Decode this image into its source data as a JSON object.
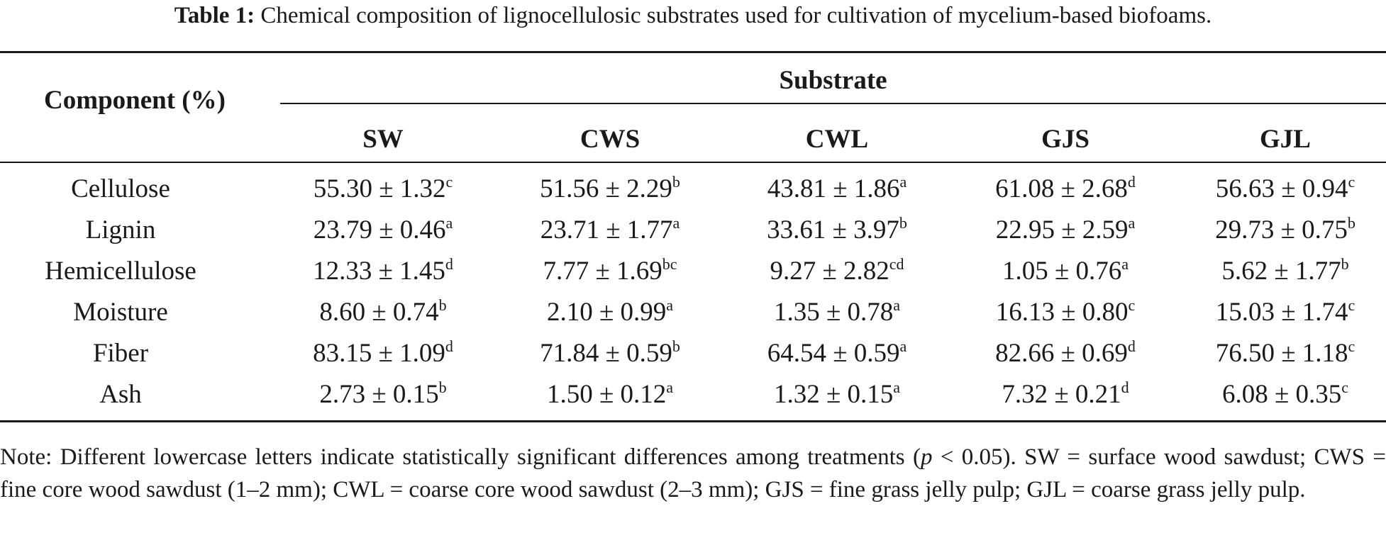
{
  "caption": {
    "label": "Table 1:",
    "text": "Chemical composition of lignocellulosic substrates used for cultivation of mycelium-based biofoams."
  },
  "table": {
    "row_header": "Component (%)",
    "group_header": "Substrate",
    "columns": [
      "SW",
      "CWS",
      "CWL",
      "GJS",
      "GJL"
    ],
    "rows": [
      {
        "label": "Cellulose",
        "cells": [
          {
            "value": "55.30 ± 1.32",
            "sig": "c"
          },
          {
            "value": "51.56 ± 2.29",
            "sig": "b"
          },
          {
            "value": "43.81 ± 1.86",
            "sig": "a"
          },
          {
            "value": "61.08 ± 2.68",
            "sig": "d"
          },
          {
            "value": "56.63 ± 0.94",
            "sig": "c"
          }
        ]
      },
      {
        "label": "Lignin",
        "cells": [
          {
            "value": "23.79 ± 0.46",
            "sig": "a"
          },
          {
            "value": "23.71 ± 1.77",
            "sig": "a"
          },
          {
            "value": "33.61 ± 3.97",
            "sig": "b"
          },
          {
            "value": "22.95 ± 2.59",
            "sig": "a"
          },
          {
            "value": "29.73 ± 0.75",
            "sig": "b"
          }
        ]
      },
      {
        "label": "Hemicellulose",
        "cells": [
          {
            "value": "12.33 ± 1.45",
            "sig": "d"
          },
          {
            "value": "7.77 ± 1.69",
            "sig": "bc"
          },
          {
            "value": "9.27 ± 2.82",
            "sig": "cd"
          },
          {
            "value": "1.05 ± 0.76",
            "sig": "a"
          },
          {
            "value": "5.62 ± 1.77",
            "sig": "b"
          }
        ]
      },
      {
        "label": "Moisture",
        "cells": [
          {
            "value": "8.60 ± 0.74",
            "sig": "b"
          },
          {
            "value": "2.10 ± 0.99",
            "sig": "a"
          },
          {
            "value": "1.35 ± 0.78",
            "sig": "a"
          },
          {
            "value": "16.13 ± 0.80",
            "sig": "c"
          },
          {
            "value": "15.03 ± 1.74",
            "sig": "c"
          }
        ]
      },
      {
        "label": "Fiber",
        "cells": [
          {
            "value": "83.15 ± 1.09",
            "sig": "d"
          },
          {
            "value": "71.84 ± 0.59",
            "sig": "b"
          },
          {
            "value": "64.54 ± 0.59",
            "sig": "a"
          },
          {
            "value": "82.66 ± 0.69",
            "sig": "d"
          },
          {
            "value": "76.50 ± 1.18",
            "sig": "c"
          }
        ]
      },
      {
        "label": "Ash",
        "cells": [
          {
            "value": "2.73 ± 0.15",
            "sig": "b"
          },
          {
            "value": "1.50 ± 0.12",
            "sig": "a"
          },
          {
            "value": "1.32 ± 0.15",
            "sig": "a"
          },
          {
            "value": "7.32 ± 0.21",
            "sig": "d"
          },
          {
            "value": "6.08 ± 0.35",
            "sig": "c"
          }
        ]
      }
    ]
  },
  "note": {
    "before_p": "Note: Different lowercase letters indicate statistically significant differences among treatments (",
    "p_symbol": "p",
    "after_p": " < 0.05). SW = surface wood sawdust; CWS = fine core wood sawdust (1–2 mm); CWL = coarse core wood sawdust (2–3 mm); GJS = fine grass jelly pulp; GJL = coarse grass jelly pulp."
  }
}
